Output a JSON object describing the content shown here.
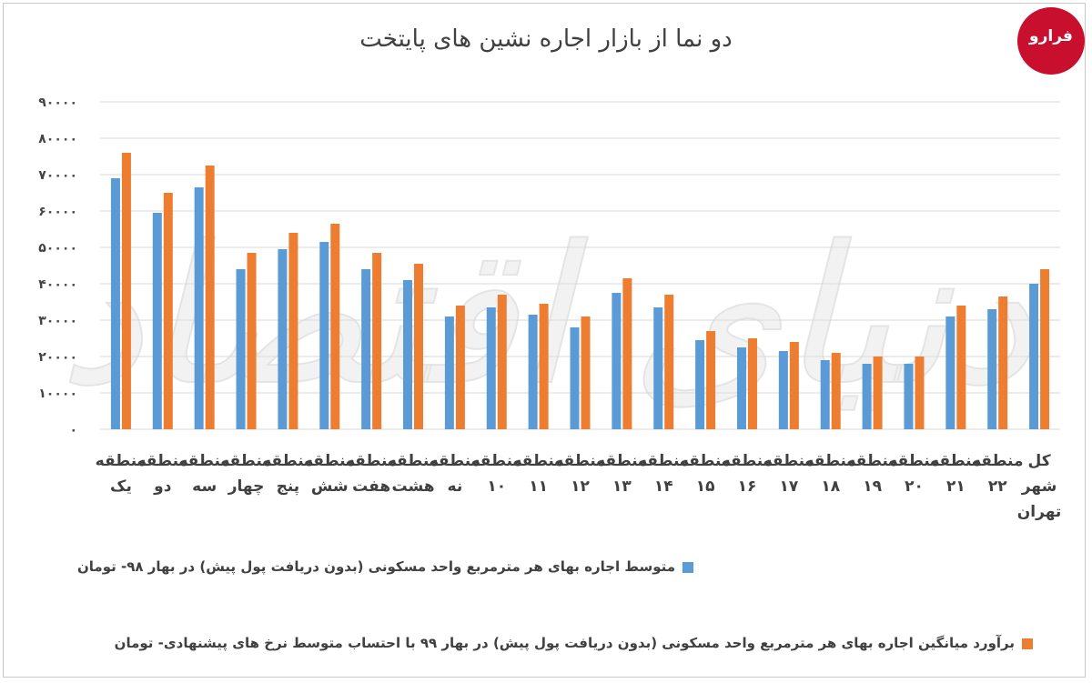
{
  "colors": {
    "series1": "#5b9bd5",
    "series2": "#ed7d31",
    "grid": "#d9d9d9",
    "brand": "#c8102e"
  },
  "logo": {
    "text": "فرارو"
  },
  "watermark": {
    "text": "دنیای اقتصاد"
  },
  "chart_data": {
    "type": "bar",
    "title": "دو نما از بازار اجاره نشین های پایتخت",
    "ylim": [
      0,
      90000
    ],
    "yticks": [
      0,
      10000,
      20000,
      30000,
      40000,
      50000,
      60000,
      70000,
      80000,
      90000
    ],
    "ytick_labels": [
      "۰",
      "۱۰۰۰۰",
      "۲۰۰۰۰",
      "۳۰۰۰۰",
      "۴۰۰۰۰",
      "۵۰۰۰۰",
      "۶۰۰۰۰",
      "۷۰۰۰۰",
      "۸۰۰۰۰",
      "۹۰۰۰۰"
    ],
    "grid": true,
    "legend_position": "bottom",
    "categories": [
      [
        "منطقه",
        "یک"
      ],
      [
        "منطقه",
        "دو"
      ],
      [
        "منطقه",
        "سه"
      ],
      [
        "منطقه",
        "چهار"
      ],
      [
        "منطقه",
        "پنج"
      ],
      [
        "منطقه",
        "شش"
      ],
      [
        "منطقه",
        "هفت"
      ],
      [
        "منطقه",
        "هشت"
      ],
      [
        "منطقه",
        "نه"
      ],
      [
        "منطقه",
        "۱۰"
      ],
      [
        "منطقه",
        "۱۱"
      ],
      [
        "منطقه",
        "۱۲"
      ],
      [
        "منطقه",
        "۱۳"
      ],
      [
        "منطقه",
        "۱۴"
      ],
      [
        "منطقه",
        "۱۵"
      ],
      [
        "منطقه",
        "۱۶"
      ],
      [
        "منطقه",
        "۱۷"
      ],
      [
        "منطقه",
        "۱۸"
      ],
      [
        "منطقه",
        "۱۹"
      ],
      [
        "منطقه",
        "۲۰"
      ],
      [
        "منطقه",
        "۲۱"
      ],
      [
        "منطقه",
        "۲۲"
      ],
      [
        "کل",
        "شهر",
        "تهران"
      ]
    ],
    "series": [
      {
        "name": "متوسط اجاره بهای هر مترمربع واحد مسکونی (بدون دریافت پول پیش) در بهار ۹۸- تومان",
        "values": [
          69000,
          59500,
          66500,
          44000,
          49500,
          51500,
          44000,
          41000,
          31000,
          33500,
          31500,
          28000,
          37500,
          33500,
          24500,
          22500,
          21500,
          19000,
          18000,
          18000,
          31000,
          33000,
          40000
        ]
      },
      {
        "name": "برآورد میانگین اجاره بهای هر مترمربع واحد مسکونی (بدون دریافت پول پیش) در بهار ۹۹ با احتساب متوسط نرخ های پیشنهادی- تومان",
        "values": [
          76000,
          65000,
          72500,
          48500,
          54000,
          56500,
          48500,
          45500,
          34000,
          37000,
          34500,
          31000,
          41500,
          37000,
          27000,
          25000,
          24000,
          21000,
          20000,
          20000,
          34000,
          36500,
          44000
        ]
      }
    ]
  }
}
